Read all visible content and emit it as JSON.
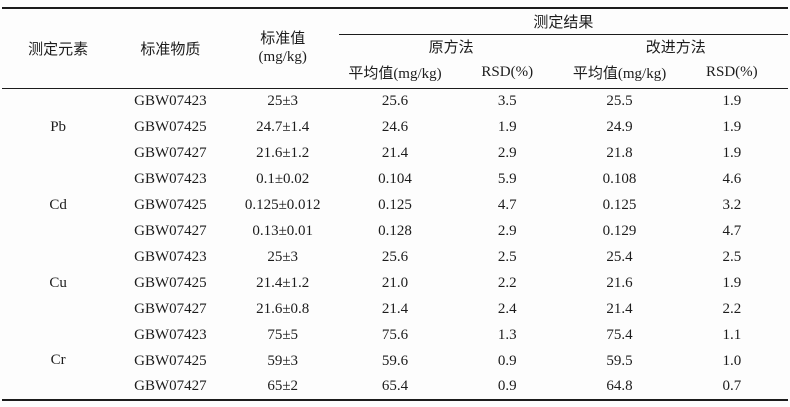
{
  "page_bg": "#fdfdfd",
  "text_color": "#1c1c1c",
  "rule_color": "#1c1c1c",
  "table": {
    "headers": {
      "element": "测定元素",
      "material": "标准物质",
      "standard_line1": "标准值",
      "standard_line2": "(mg/kg)",
      "results_group": "测定结果",
      "method_original": "原方法",
      "method_improved": "改进方法",
      "mean_label": "平均值(mg/kg)",
      "rsd_label": "RSD(%)"
    },
    "groups": [
      {
        "element": "Pb",
        "rows": [
          {
            "material": "GBW07423",
            "standard": "25±3",
            "orig_mean": "25.6",
            "orig_rsd": "3.5",
            "impr_mean": "25.5",
            "impr_rsd": "1.9"
          },
          {
            "material": "GBW07425",
            "standard": "24.7±1.4",
            "orig_mean": "24.6",
            "orig_rsd": "1.9",
            "impr_mean": "24.9",
            "impr_rsd": "1.9"
          },
          {
            "material": "GBW07427",
            "standard": "21.6±1.2",
            "orig_mean": "21.4",
            "orig_rsd": "2.9",
            "impr_mean": "21.8",
            "impr_rsd": "1.9"
          }
        ]
      },
      {
        "element": "Cd",
        "rows": [
          {
            "material": "GBW07423",
            "standard": "0.1±0.02",
            "orig_mean": "0.104",
            "orig_rsd": "5.9",
            "impr_mean": "0.108",
            "impr_rsd": "4.6"
          },
          {
            "material": "GBW07425",
            "standard": "0.125±0.012",
            "orig_mean": "0.125",
            "orig_rsd": "4.7",
            "impr_mean": "0.125",
            "impr_rsd": "3.2"
          },
          {
            "material": "GBW07427",
            "standard": "0.13±0.01",
            "orig_mean": "0.128",
            "orig_rsd": "2.9",
            "impr_mean": "0.129",
            "impr_rsd": "4.7"
          }
        ]
      },
      {
        "element": "Cu",
        "rows": [
          {
            "material": "GBW07423",
            "standard": "25±3",
            "orig_mean": "25.6",
            "orig_rsd": "2.5",
            "impr_mean": "25.4",
            "impr_rsd": "2.5"
          },
          {
            "material": "GBW07425",
            "standard": "21.4±1.2",
            "orig_mean": "21.0",
            "orig_rsd": "2.2",
            "impr_mean": "21.6",
            "impr_rsd": "1.9"
          },
          {
            "material": "GBW07427",
            "standard": "21.6±0.8",
            "orig_mean": "21.4",
            "orig_rsd": "2.4",
            "impr_mean": "21.4",
            "impr_rsd": "2.2"
          }
        ]
      },
      {
        "element": "Cr",
        "rows": [
          {
            "material": "GBW07423",
            "standard": "75±5",
            "orig_mean": "75.6",
            "orig_rsd": "1.3",
            "impr_mean": "75.4",
            "impr_rsd": "1.1"
          },
          {
            "material": "GBW07425",
            "standard": "59±3",
            "orig_mean": "59.6",
            "orig_rsd": "0.9",
            "impr_mean": "59.5",
            "impr_rsd": "1.0"
          },
          {
            "material": "GBW07427",
            "standard": "65±2",
            "orig_mean": "65.4",
            "orig_rsd": "0.9",
            "impr_mean": "64.8",
            "impr_rsd": "0.7"
          }
        ]
      }
    ]
  }
}
